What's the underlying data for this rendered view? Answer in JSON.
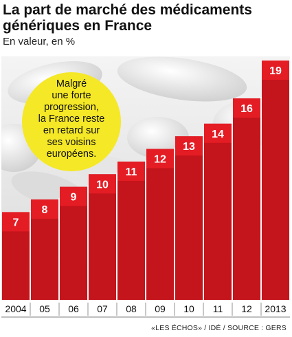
{
  "header": {
    "title": "La part de marché des médicaments génériques en France",
    "subtitle": "En valeur, en %"
  },
  "callout": {
    "lines": [
      "Malgré",
      "une forte",
      "progression,",
      "la France reste",
      "en retard sur",
      "ses voisins",
      "européens."
    ]
  },
  "source": "«LES ÉCHOS» / IDÉ / SOURCE : GERS",
  "colors": {
    "bar_top": "#e41c24",
    "bar_body": "#c4141c",
    "bubble": "#f5e826",
    "background_photo": "#ececec"
  },
  "chart_data": {
    "type": "bar",
    "title": "La part de marché des médicaments génériques en France",
    "subtitle": "En valeur, en %",
    "categories": [
      "2004",
      "05",
      "06",
      "07",
      "08",
      "09",
      "10",
      "11",
      "12",
      "2013"
    ],
    "values": [
      7,
      8,
      9,
      10,
      11,
      12,
      13,
      14,
      16,
      19
    ],
    "xlabel": "",
    "ylabel": "",
    "ylim": [
      0,
      19
    ],
    "grid": false,
    "data_labels": true
  }
}
